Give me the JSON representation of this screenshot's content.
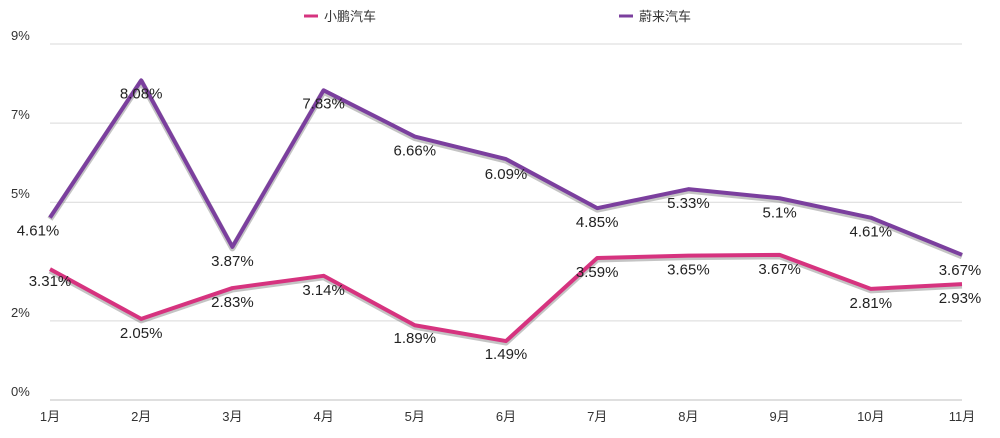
{
  "chart_data": {
    "type": "line",
    "title": "",
    "xlabel": "",
    "ylabel": "",
    "categories": [
      "1月",
      "2月",
      "3月",
      "4月",
      "5月",
      "6月",
      "7月",
      "8月",
      "9月",
      "10月",
      "11月"
    ],
    "ylim": [
      0,
      9
    ],
    "y_ticks": [
      0,
      2,
      5,
      7,
      9
    ],
    "y_tick_labels": [
      "0%",
      "2%",
      "5%",
      "7%",
      "9%"
    ],
    "grid": true,
    "legend_position": "top",
    "series": [
      {
        "name": "小鹏汽车",
        "color": "#d6337f",
        "values": [
          3.31,
          2.05,
          2.83,
          3.14,
          1.89,
          1.49,
          3.59,
          3.65,
          3.67,
          2.81,
          2.93
        ],
        "labels": [
          "3.31%",
          "2.05%",
          "2.83%",
          "3.14%",
          "1.89%",
          "1.49%",
          "3.59%",
          "3.65%",
          "3.67%",
          "2.81%",
          "2.93%"
        ]
      },
      {
        "name": "蔚来汽车",
        "color": "#7b3f9e",
        "values": [
          4.61,
          8.08,
          3.87,
          7.83,
          6.66,
          6.09,
          4.85,
          5.33,
          5.1,
          4.61,
          3.67
        ],
        "labels": [
          "4.61%",
          "8.08%",
          "3.87%",
          "7.83%",
          "6.66%",
          "6.09%",
          "4.85%",
          "5.33%",
          "5.1%",
          "4.61%",
          "3.67%"
        ]
      }
    ]
  }
}
